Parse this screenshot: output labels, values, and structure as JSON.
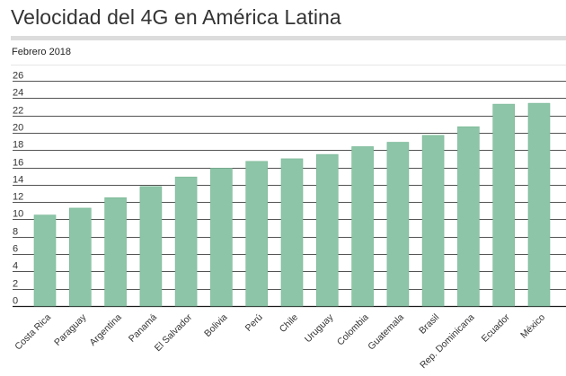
{
  "header": {
    "title": "Velocidad del 4G en América Latina",
    "subtitle": "Febrero 2018"
  },
  "colors": {
    "bar": "#8cc5a7",
    "bar_stroke": "#7bb796",
    "grid": "#1a1a1a",
    "text": "#333333"
  },
  "chart_data": {
    "type": "bar",
    "title": "Velocidad del 4G en América Latina",
    "subtitle": "Febrero 2018",
    "xlabel": "",
    "ylabel": "",
    "categories": [
      "Costa Rica",
      "Paraguay",
      "Argentina",
      "Panamá",
      "El Salvador",
      "Bolivia",
      "Perú",
      "Chile",
      "Uruguay",
      "Colombia",
      "Guatemala",
      "Brasil",
      "Rep. Dominicana",
      "Ecuador",
      "México"
    ],
    "values": [
      10.5,
      11.3,
      12.5,
      13.8,
      14.9,
      15.9,
      16.7,
      17.0,
      17.5,
      18.4,
      18.9,
      19.7,
      20.7,
      23.3,
      23.4
    ],
    "ylim": [
      0,
      26
    ],
    "yticks": [
      0,
      2,
      4,
      6,
      8,
      10,
      12,
      14,
      16,
      18,
      20,
      22,
      24,
      26
    ],
    "grid": true,
    "legend": "none"
  }
}
